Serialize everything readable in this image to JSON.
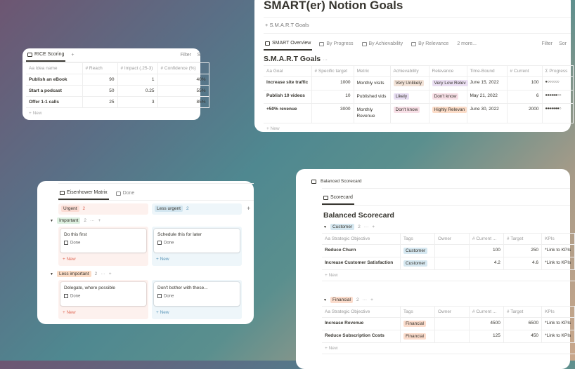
{
  "rice": {
    "tab": "RICE Scoring",
    "add": "+",
    "filter": "Filter",
    "sort": "S",
    "columns": [
      "Aa Idea name",
      "# Reach",
      "# Impact (.25-3)",
      "# Confidence (%)"
    ],
    "rows": [
      [
        "Publish an eBook",
        "90",
        "1",
        "40%"
      ],
      [
        "Start a podcast",
        "50",
        "0.25",
        "55%"
      ],
      [
        "Offer 1-1 calls",
        "25",
        "3",
        "85%"
      ]
    ],
    "new": "+ New"
  },
  "smart": {
    "title": "SMART(er) Notion Goals",
    "link": "+ S.M.A.R.T Goals",
    "tabs": [
      "SMART Overview",
      "By Progress",
      "By Achievability",
      "By Relevance",
      "2 more..."
    ],
    "filter": "Filter",
    "sort": "Sor",
    "table_title": "S.M.A.R.T Goals",
    "more": "···",
    "columns": [
      "Aa Goal",
      "# Specific target",
      "Metric",
      "Achievability",
      "Relevance",
      "Time-Bound",
      "# Current",
      "Σ Progress"
    ],
    "rows": [
      [
        "Increase site traffic",
        "1000",
        "Monthly visits",
        "Very Unlikely",
        "Very Low Relev",
        "June 15, 2022",
        "100",
        "●○○○○○○"
      ],
      [
        "Publish 10 videos",
        "10",
        "Published vids",
        "Likely",
        "Don't know",
        "May 21, 2022",
        "6",
        "●●●●●●○○"
      ],
      [
        "+50% revenue",
        "3000",
        "Monthly Revenue",
        "Don't know",
        "Highly Relevan",
        "June 30, 2022",
        "2000",
        "●●●●●●●○"
      ]
    ],
    "new": "+ New"
  },
  "eisen": {
    "tabs": [
      "Eisenhower Matrix",
      "Done"
    ],
    "cols": [
      {
        "label": "Urgent",
        "count": "2"
      },
      {
        "label": "Less urgent",
        "count": "2"
      }
    ],
    "add": "+",
    "groups": [
      {
        "label": "Important",
        "count": "2",
        "cards": [
          "Do this first",
          "Schedule this for later"
        ]
      },
      {
        "label": "Less important",
        "count": "2",
        "cards": [
          "Delegate, where possible",
          "Don't bother with these..."
        ]
      }
    ],
    "done": "Done",
    "new": "+ New",
    "more": "···"
  },
  "bsc": {
    "breadcrumb": "Balanced Scorecard",
    "tab": "Scorecard",
    "title": "Balanced Scorecard",
    "columns": [
      "Aa Strategic Objective",
      "Tags",
      "Owner",
      "# Current ...",
      "# Target",
      "KPIs"
    ],
    "groups": [
      {
        "label": "Customer",
        "count": "2",
        "rows": [
          [
            "Reduce Churn",
            "Customer",
            "",
            "100",
            "250",
            "*Link to KPIs"
          ],
          [
            "Increase Customer Satisfaction",
            "Customer",
            "",
            "4.2",
            "4.6",
            "*Link to KPIs"
          ]
        ]
      },
      {
        "label": "Financial",
        "count": "2",
        "rows": [
          [
            "Increase Revenue",
            "Financial",
            "",
            "4500",
            "6500",
            "*Link to KPIs"
          ],
          [
            "Reduce Subscription Costs",
            "Financial",
            "",
            "125",
            "450",
            "*Link to KPIs"
          ]
        ]
      }
    ],
    "new": "+ New",
    "more": "···",
    "add": "+"
  },
  "colors": {
    "veryUnlikely": "#f3e3d8",
    "lowRel": "#ebdff3",
    "likely": "#e8def3",
    "dontknow": "#f7dfe6",
    "highly": "#fbdcc8",
    "customer": "#d6e8f1",
    "financial": "#fbdccc",
    "urgentBg": "#fdf1ee",
    "lessUrgentBg": "#eef6fa",
    "important": "#dcefdf",
    "lessImportant": "#fbdcc6"
  }
}
